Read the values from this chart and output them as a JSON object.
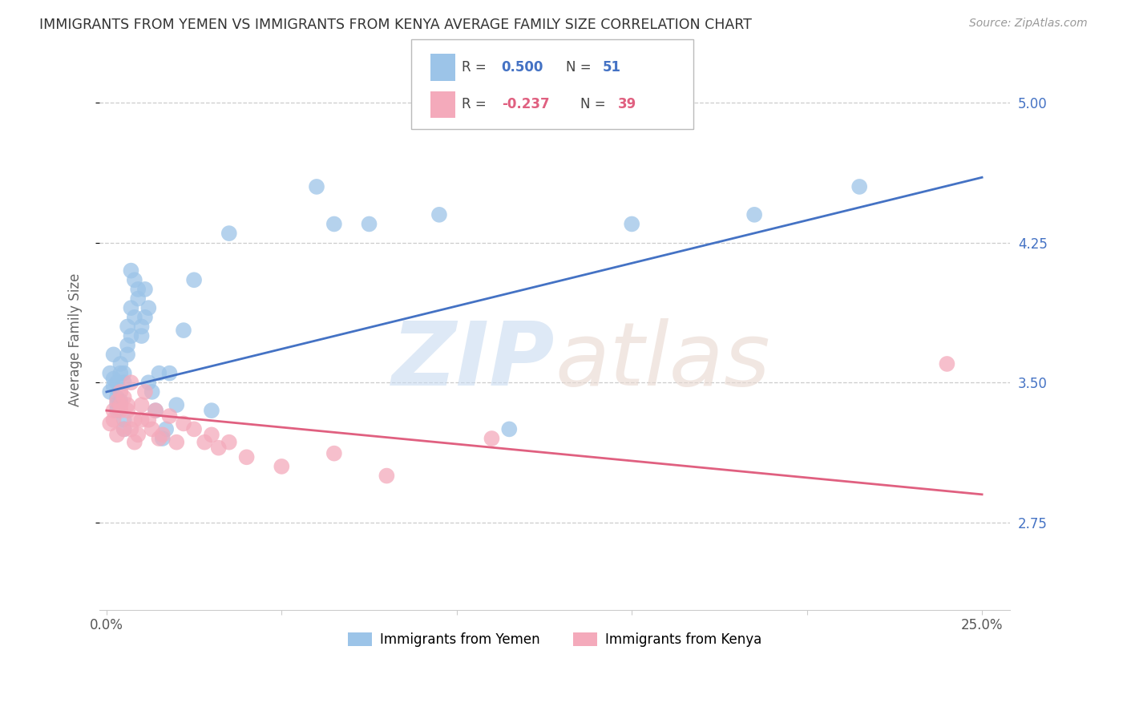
{
  "title": "IMMIGRANTS FROM YEMEN VS IMMIGRANTS FROM KENYA AVERAGE FAMILY SIZE CORRELATION CHART",
  "source": "Source: ZipAtlas.com",
  "ylabel": "Average Family Size",
  "xlim_min": -0.002,
  "xlim_max": 0.258,
  "ylim_min": 2.28,
  "ylim_max": 5.18,
  "yticks": [
    2.75,
    3.5,
    4.25,
    5.0
  ],
  "xticks": [
    0.0,
    0.05,
    0.1,
    0.15,
    0.2,
    0.25
  ],
  "xticklabels": [
    "0.0%",
    "",
    "",
    "",
    "",
    "25.0%"
  ],
  "yticklabels": [
    "2.75",
    "3.50",
    "4.25",
    "5.00"
  ],
  "watermark_zip": "ZIP",
  "watermark_atlas": "atlas",
  "legend_label1": "Immigrants from Yemen",
  "legend_label2": "Immigrants from Kenya",
  "blue_scatter_color": "#9CC4E8",
  "pink_scatter_color": "#F4AABB",
  "blue_line_color": "#4472C4",
  "pink_line_color": "#E06080",
  "blue_text_color": "#4472C4",
  "pink_text_color": "#E06080",
  "grid_color": "#cccccc",
  "title_color": "#333333",
  "source_color": "#999999",
  "ylabel_color": "#666666",
  "xtick_color": "#555555",
  "ytick_color": "#4472C4",
  "yemen_x": [
    0.001,
    0.001,
    0.002,
    0.002,
    0.002,
    0.003,
    0.003,
    0.003,
    0.003,
    0.004,
    0.004,
    0.004,
    0.005,
    0.005,
    0.005,
    0.005,
    0.006,
    0.006,
    0.006,
    0.007,
    0.007,
    0.007,
    0.008,
    0.008,
    0.009,
    0.009,
    0.01,
    0.01,
    0.011,
    0.011,
    0.012,
    0.012,
    0.013,
    0.014,
    0.015,
    0.016,
    0.017,
    0.018,
    0.02,
    0.022,
    0.025,
    0.03,
    0.035,
    0.06,
    0.065,
    0.075,
    0.095,
    0.115,
    0.15,
    0.185,
    0.215
  ],
  "yemen_y": [
    3.45,
    3.55,
    3.48,
    3.52,
    3.65,
    3.42,
    3.5,
    3.35,
    3.38,
    3.55,
    3.6,
    3.4,
    3.5,
    3.55,
    3.3,
    3.25,
    3.65,
    3.8,
    3.7,
    4.1,
    3.9,
    3.75,
    4.05,
    3.85,
    4.0,
    3.95,
    3.8,
    3.75,
    4.0,
    3.85,
    3.9,
    3.5,
    3.45,
    3.35,
    3.55,
    3.2,
    3.25,
    3.55,
    3.38,
    3.78,
    4.05,
    3.35,
    4.3,
    4.55,
    4.35,
    4.35,
    4.4,
    3.25,
    4.35,
    4.4,
    4.55
  ],
  "kenya_x": [
    0.001,
    0.002,
    0.002,
    0.003,
    0.003,
    0.004,
    0.004,
    0.004,
    0.005,
    0.005,
    0.006,
    0.006,
    0.007,
    0.007,
    0.008,
    0.008,
    0.009,
    0.01,
    0.01,
    0.011,
    0.012,
    0.013,
    0.014,
    0.015,
    0.016,
    0.018,
    0.02,
    0.022,
    0.025,
    0.028,
    0.03,
    0.032,
    0.035,
    0.04,
    0.05,
    0.065,
    0.08,
    0.11,
    0.24
  ],
  "kenya_y": [
    3.28,
    3.35,
    3.3,
    3.4,
    3.22,
    3.45,
    3.38,
    3.35,
    3.42,
    3.25,
    3.35,
    3.38,
    3.5,
    3.25,
    3.3,
    3.18,
    3.22,
    3.38,
    3.3,
    3.45,
    3.3,
    3.25,
    3.35,
    3.2,
    3.22,
    3.32,
    3.18,
    3.28,
    3.25,
    3.18,
    3.22,
    3.15,
    3.18,
    3.1,
    3.05,
    3.12,
    3.0,
    3.2,
    3.6
  ],
  "blue_line_x0": 0.0,
  "blue_line_y0": 3.45,
  "blue_line_x1": 0.25,
  "blue_line_y1": 4.6,
  "pink_line_x0": 0.0,
  "pink_line_y0": 3.35,
  "pink_line_x1": 0.25,
  "pink_line_y1": 2.9
}
